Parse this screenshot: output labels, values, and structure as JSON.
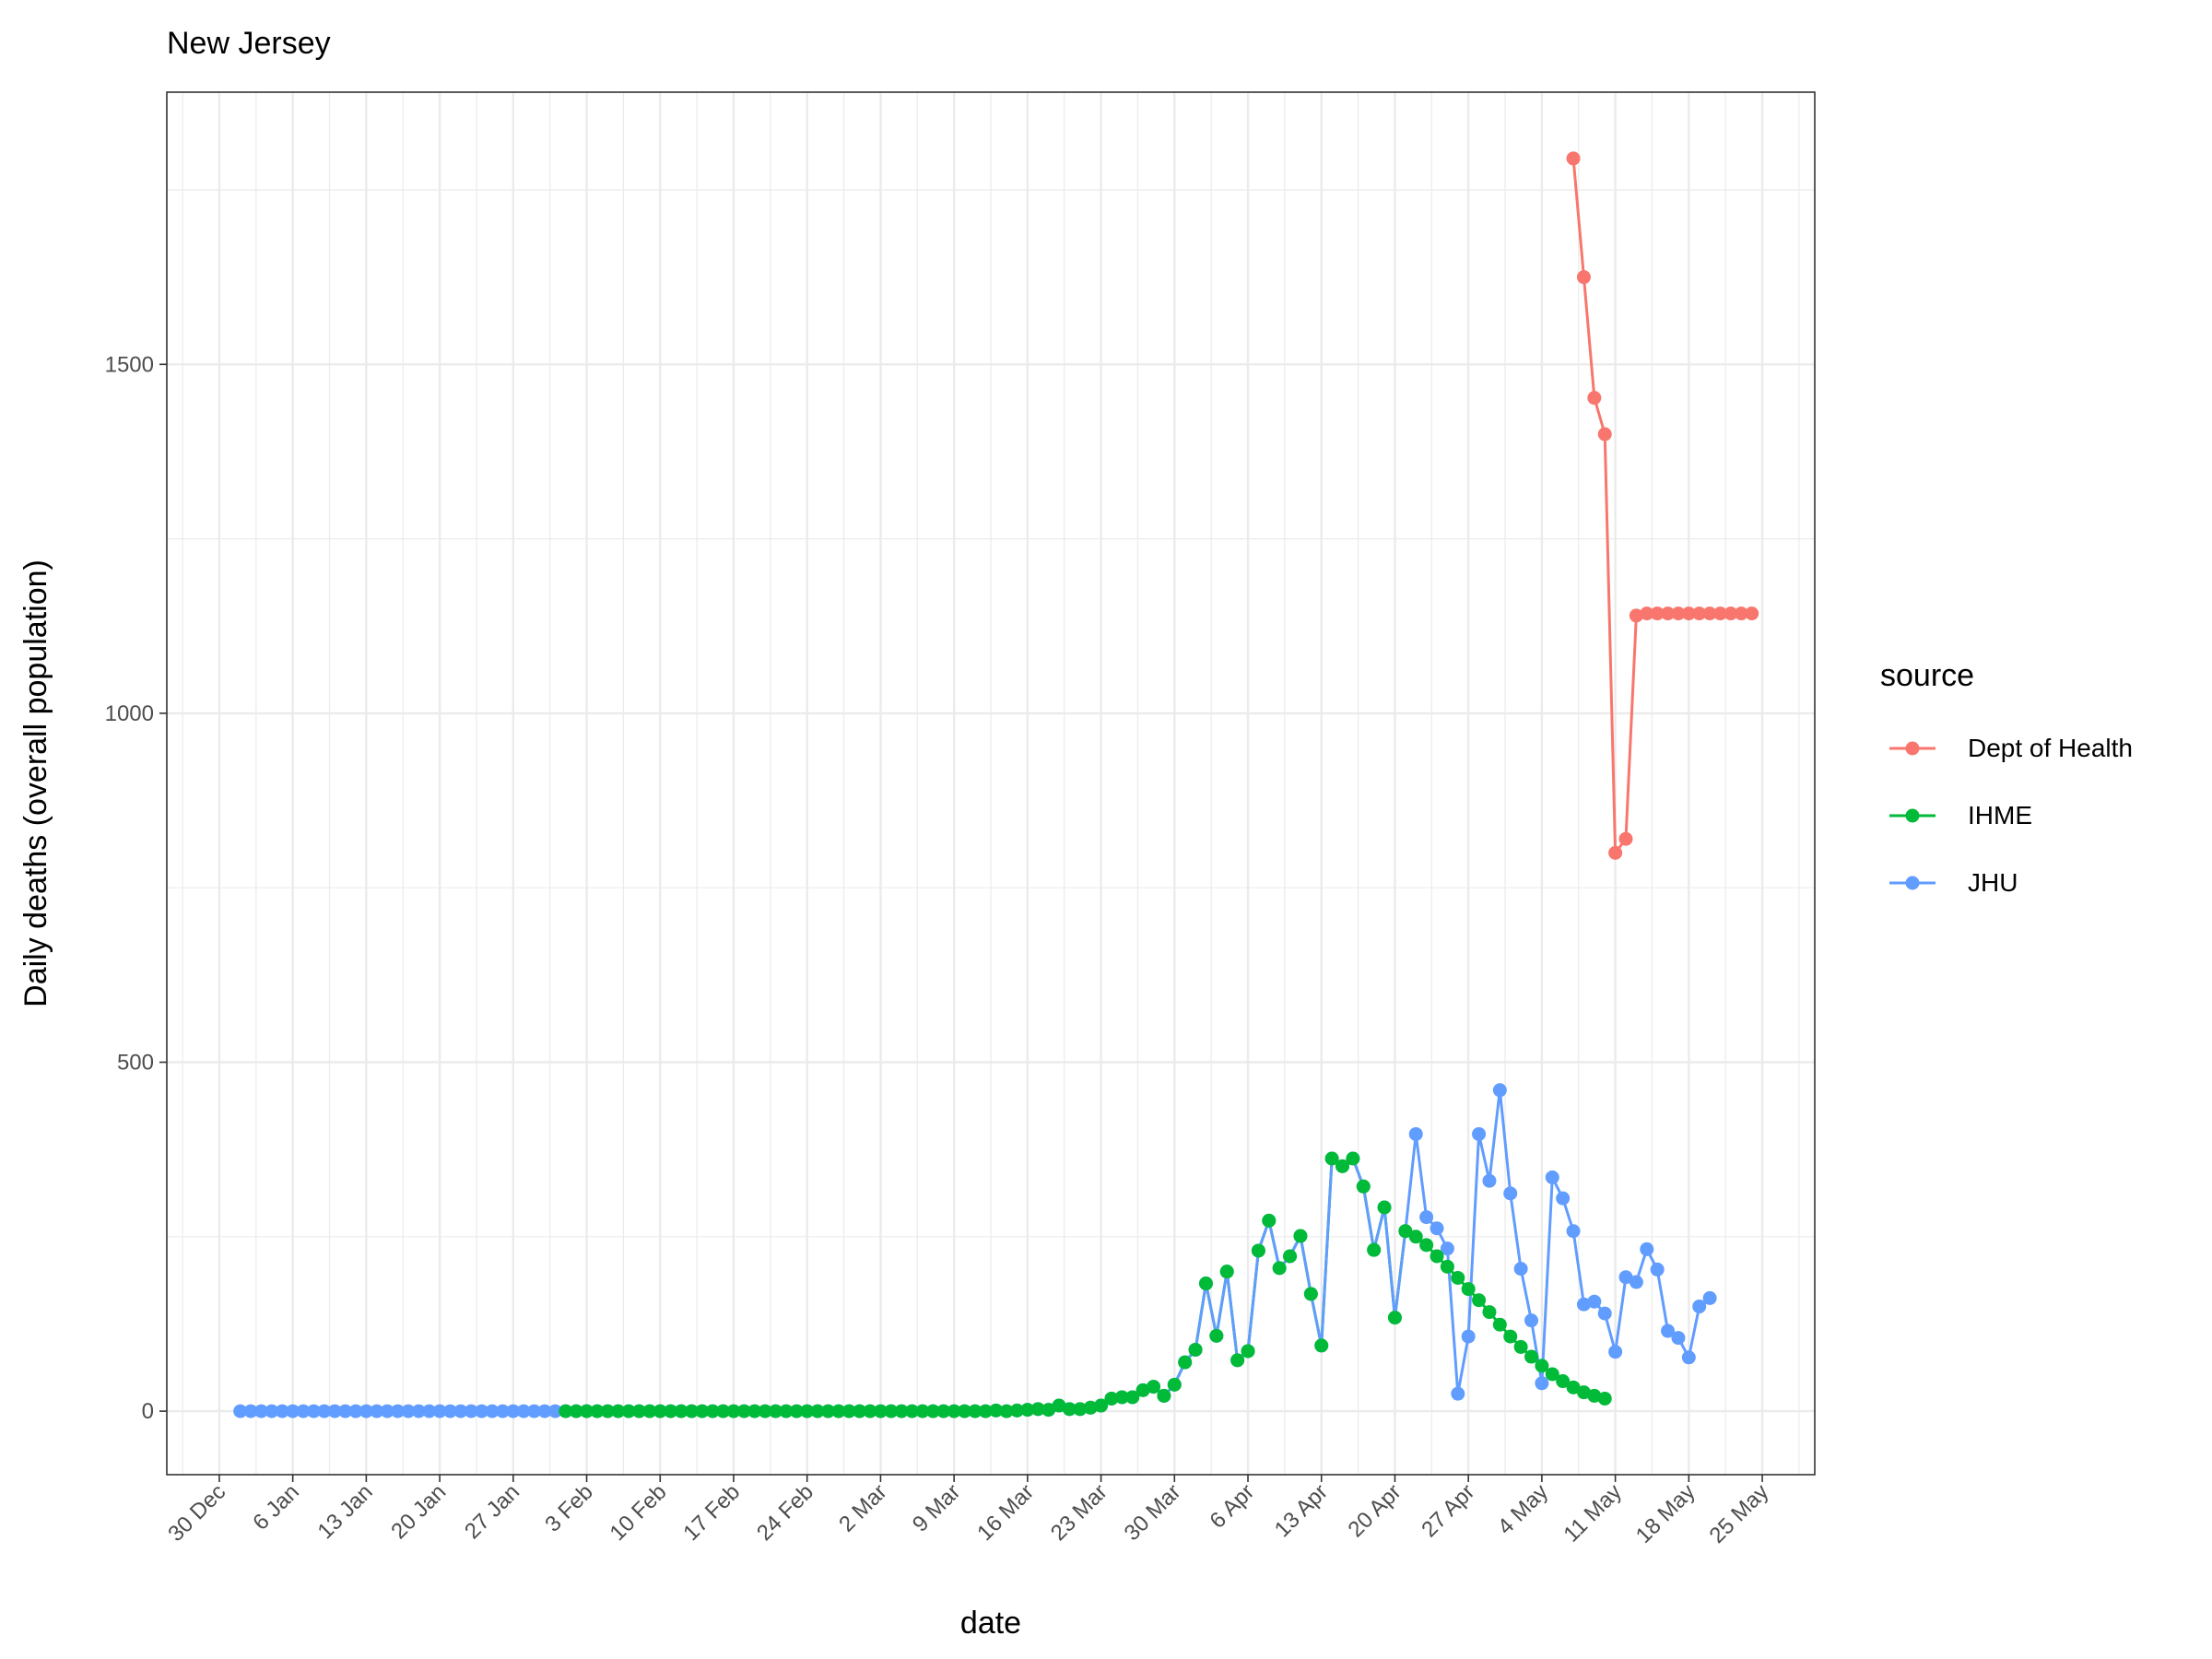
{
  "chart_data": {
    "type": "line",
    "title": "New Jersey",
    "xlabel": "date",
    "ylabel": "Daily deaths (overall population)",
    "legend_title": "source",
    "legend_position": "right",
    "grid": true,
    "xlim": [
      "12-25",
      "05-30"
    ],
    "ylim": [
      -91,
      1890
    ],
    "yticks": [
      0,
      500,
      1000,
      1500
    ],
    "xticks": [
      {
        "value": "12-30",
        "label": "30 Dec"
      },
      {
        "value": "01-06",
        "label": "6 Jan"
      },
      {
        "value": "01-13",
        "label": "13 Jan"
      },
      {
        "value": "01-20",
        "label": "20 Jan"
      },
      {
        "value": "01-27",
        "label": "27 Jan"
      },
      {
        "value": "02-03",
        "label": "3 Feb"
      },
      {
        "value": "02-10",
        "label": "10 Feb"
      },
      {
        "value": "02-17",
        "label": "17 Feb"
      },
      {
        "value": "02-24",
        "label": "24 Feb"
      },
      {
        "value": "03-02",
        "label": "2 Mar"
      },
      {
        "value": "03-09",
        "label": "9 Mar"
      },
      {
        "value": "03-16",
        "label": "16 Mar"
      },
      {
        "value": "03-23",
        "label": "23 Mar"
      },
      {
        "value": "03-30",
        "label": "30 Mar"
      },
      {
        "value": "04-06",
        "label": "6 Apr"
      },
      {
        "value": "04-13",
        "label": "13 Apr"
      },
      {
        "value": "04-20",
        "label": "20 Apr"
      },
      {
        "value": "04-27",
        "label": "27 Apr"
      },
      {
        "value": "05-04",
        "label": "4 May"
      },
      {
        "value": "05-11",
        "label": "11 May"
      },
      {
        "value": "05-18",
        "label": "18 May"
      },
      {
        "value": "05-25",
        "label": "25 May"
      }
    ],
    "series": [
      {
        "name": "Dept of Health",
        "color": "#F8766D",
        "x": [
          "05-07",
          "05-08",
          "05-09",
          "05-10",
          "05-11",
          "05-12",
          "05-13",
          "05-14",
          "05-15",
          "05-16",
          "05-17",
          "05-18",
          "05-19",
          "05-20",
          "05-21",
          "05-22",
          "05-23",
          "05-24"
        ],
        "values": [
          1795,
          1625,
          1452,
          1400,
          800,
          820,
          1140,
          1143,
          1143,
          1143,
          1143,
          1143,
          1143,
          1143,
          1143,
          1143,
          1143,
          1143
        ]
      },
      {
        "name": "IHME",
        "color": "#00BA38",
        "x": [
          "02-01",
          "02-02",
          "02-03",
          "02-04",
          "02-05",
          "02-06",
          "02-07",
          "02-08",
          "02-09",
          "02-10",
          "02-11",
          "02-12",
          "02-13",
          "02-14",
          "02-15",
          "02-16",
          "02-17",
          "02-18",
          "02-19",
          "02-20",
          "02-21",
          "02-22",
          "02-23",
          "02-24",
          "02-25",
          "02-26",
          "02-27",
          "02-28",
          "02-29",
          "03-01",
          "03-02",
          "03-03",
          "03-04",
          "03-05",
          "03-06",
          "03-07",
          "03-08",
          "03-09",
          "03-10",
          "03-11",
          "03-12",
          "03-13",
          "03-14",
          "03-15",
          "03-16",
          "03-17",
          "03-18",
          "03-19",
          "03-20",
          "03-21",
          "03-22",
          "03-23",
          "03-24",
          "03-25",
          "03-26",
          "03-27",
          "03-28",
          "03-29",
          "03-30",
          "03-31",
          "04-01",
          "04-02",
          "04-03",
          "04-04",
          "04-05",
          "04-06",
          "04-07",
          "04-08",
          "04-09",
          "04-10",
          "04-11",
          "04-12",
          "04-13",
          "04-14",
          "04-15",
          "04-16",
          "04-17",
          "04-18",
          "04-19",
          "04-20",
          "04-21",
          "04-22",
          "04-23",
          "04-24",
          "04-25",
          "04-26",
          "04-27",
          "04-28",
          "04-29",
          "04-30",
          "05-01",
          "05-02",
          "05-03",
          "05-04",
          "05-05",
          "05-06",
          "05-07",
          "05-08",
          "05-09",
          "05-10"
        ],
        "values": [
          0,
          0,
          0,
          0,
          0,
          0,
          0,
          0,
          0,
          0,
          0,
          0,
          0,
          0,
          0,
          0,
          0,
          0,
          0,
          0,
          0,
          0,
          0,
          0,
          0,
          0,
          0,
          0,
          0,
          0,
          0,
          0,
          0,
          0,
          0,
          0,
          0,
          0,
          0,
          0,
          0,
          1,
          0,
          1,
          2,
          3,
          2,
          8,
          3,
          3,
          5,
          8,
          18,
          20,
          20,
          30,
          35,
          22,
          38,
          70,
          88,
          183,
          108,
          200,
          73,
          86,
          230,
          273,
          205,
          222,
          251,
          168,
          94,
          362,
          351,
          362,
          322,
          231,
          292,
          134,
          258,
          250,
          238,
          222,
          207,
          191,
          175,
          159,
          142,
          124,
          107,
          92,
          78,
          65,
          53,
          43,
          34,
          27,
          22,
          18
        ]
      },
      {
        "name": "JHU",
        "color": "#619CFF",
        "x": [
          "01-01",
          "01-02",
          "01-03",
          "01-04",
          "01-05",
          "01-06",
          "01-07",
          "01-08",
          "01-09",
          "01-10",
          "01-11",
          "01-12",
          "01-13",
          "01-14",
          "01-15",
          "01-16",
          "01-17",
          "01-18",
          "01-19",
          "01-20",
          "01-21",
          "01-22",
          "01-23",
          "01-24",
          "01-25",
          "01-26",
          "01-27",
          "01-28",
          "01-29",
          "01-30",
          "01-31",
          "02-01",
          "02-02",
          "02-03",
          "02-04",
          "02-05",
          "02-06",
          "02-07",
          "02-08",
          "02-09",
          "02-10",
          "02-11",
          "02-12",
          "02-13",
          "02-14",
          "02-15",
          "02-16",
          "02-17",
          "02-18",
          "02-19",
          "02-20",
          "02-21",
          "02-22",
          "02-23",
          "02-24",
          "02-25",
          "02-26",
          "02-27",
          "02-28",
          "02-29",
          "03-01",
          "03-02",
          "03-03",
          "03-04",
          "03-05",
          "03-06",
          "03-07",
          "03-08",
          "03-09",
          "03-10",
          "03-11",
          "03-12",
          "03-13",
          "03-14",
          "03-15",
          "03-16",
          "03-17",
          "03-18",
          "03-19",
          "03-20",
          "03-21",
          "03-22",
          "03-23",
          "03-24",
          "03-25",
          "03-26",
          "03-27",
          "03-28",
          "03-29",
          "03-30",
          "03-31",
          "04-01",
          "04-02",
          "04-03",
          "04-04",
          "04-05",
          "04-06",
          "04-07",
          "04-08",
          "04-09",
          "04-10",
          "04-11",
          "04-12",
          "04-13",
          "04-14",
          "04-15",
          "04-16",
          "04-17",
          "04-18",
          "04-19",
          "04-20",
          "04-21",
          "04-22",
          "04-23",
          "04-24",
          "04-25",
          "04-26",
          "04-27",
          "04-28",
          "04-29",
          "04-30",
          "05-01",
          "05-02",
          "05-03",
          "05-04",
          "05-05",
          "05-06",
          "05-07",
          "05-08",
          "05-09",
          "05-10",
          "05-11",
          "05-12",
          "05-13",
          "05-14",
          "05-15",
          "05-16",
          "05-17",
          "05-18",
          "05-19",
          "05-20"
        ],
        "values": [
          0,
          0,
          0,
          0,
          0,
          0,
          0,
          0,
          0,
          0,
          0,
          0,
          0,
          0,
          0,
          0,
          0,
          0,
          0,
          0,
          0,
          0,
          0,
          0,
          0,
          0,
          0,
          0,
          0,
          0,
          0,
          0,
          0,
          0,
          0,
          0,
          0,
          0,
          0,
          0,
          0,
          0,
          0,
          0,
          0,
          0,
          0,
          0,
          0,
          0,
          0,
          0,
          0,
          0,
          0,
          0,
          0,
          0,
          0,
          0,
          0,
          0,
          0,
          0,
          0,
          0,
          0,
          0,
          0,
          0,
          0,
          0,
          1,
          0,
          1,
          2,
          3,
          2,
          8,
          3,
          3,
          5,
          8,
          18,
          20,
          20,
          30,
          35,
          22,
          38,
          70,
          88,
          183,
          108,
          200,
          73,
          86,
          230,
          273,
          205,
          222,
          251,
          168,
          94,
          362,
          351,
          362,
          322,
          231,
          292,
          134,
          258,
          397,
          278,
          262,
          233,
          25,
          107,
          397,
          330,
          460,
          312,
          204,
          130,
          40,
          335,
          305,
          258,
          153,
          157,
          140,
          85,
          192,
          185,
          232,
          203,
          115,
          105,
          77,
          150,
          162
        ]
      }
    ]
  }
}
